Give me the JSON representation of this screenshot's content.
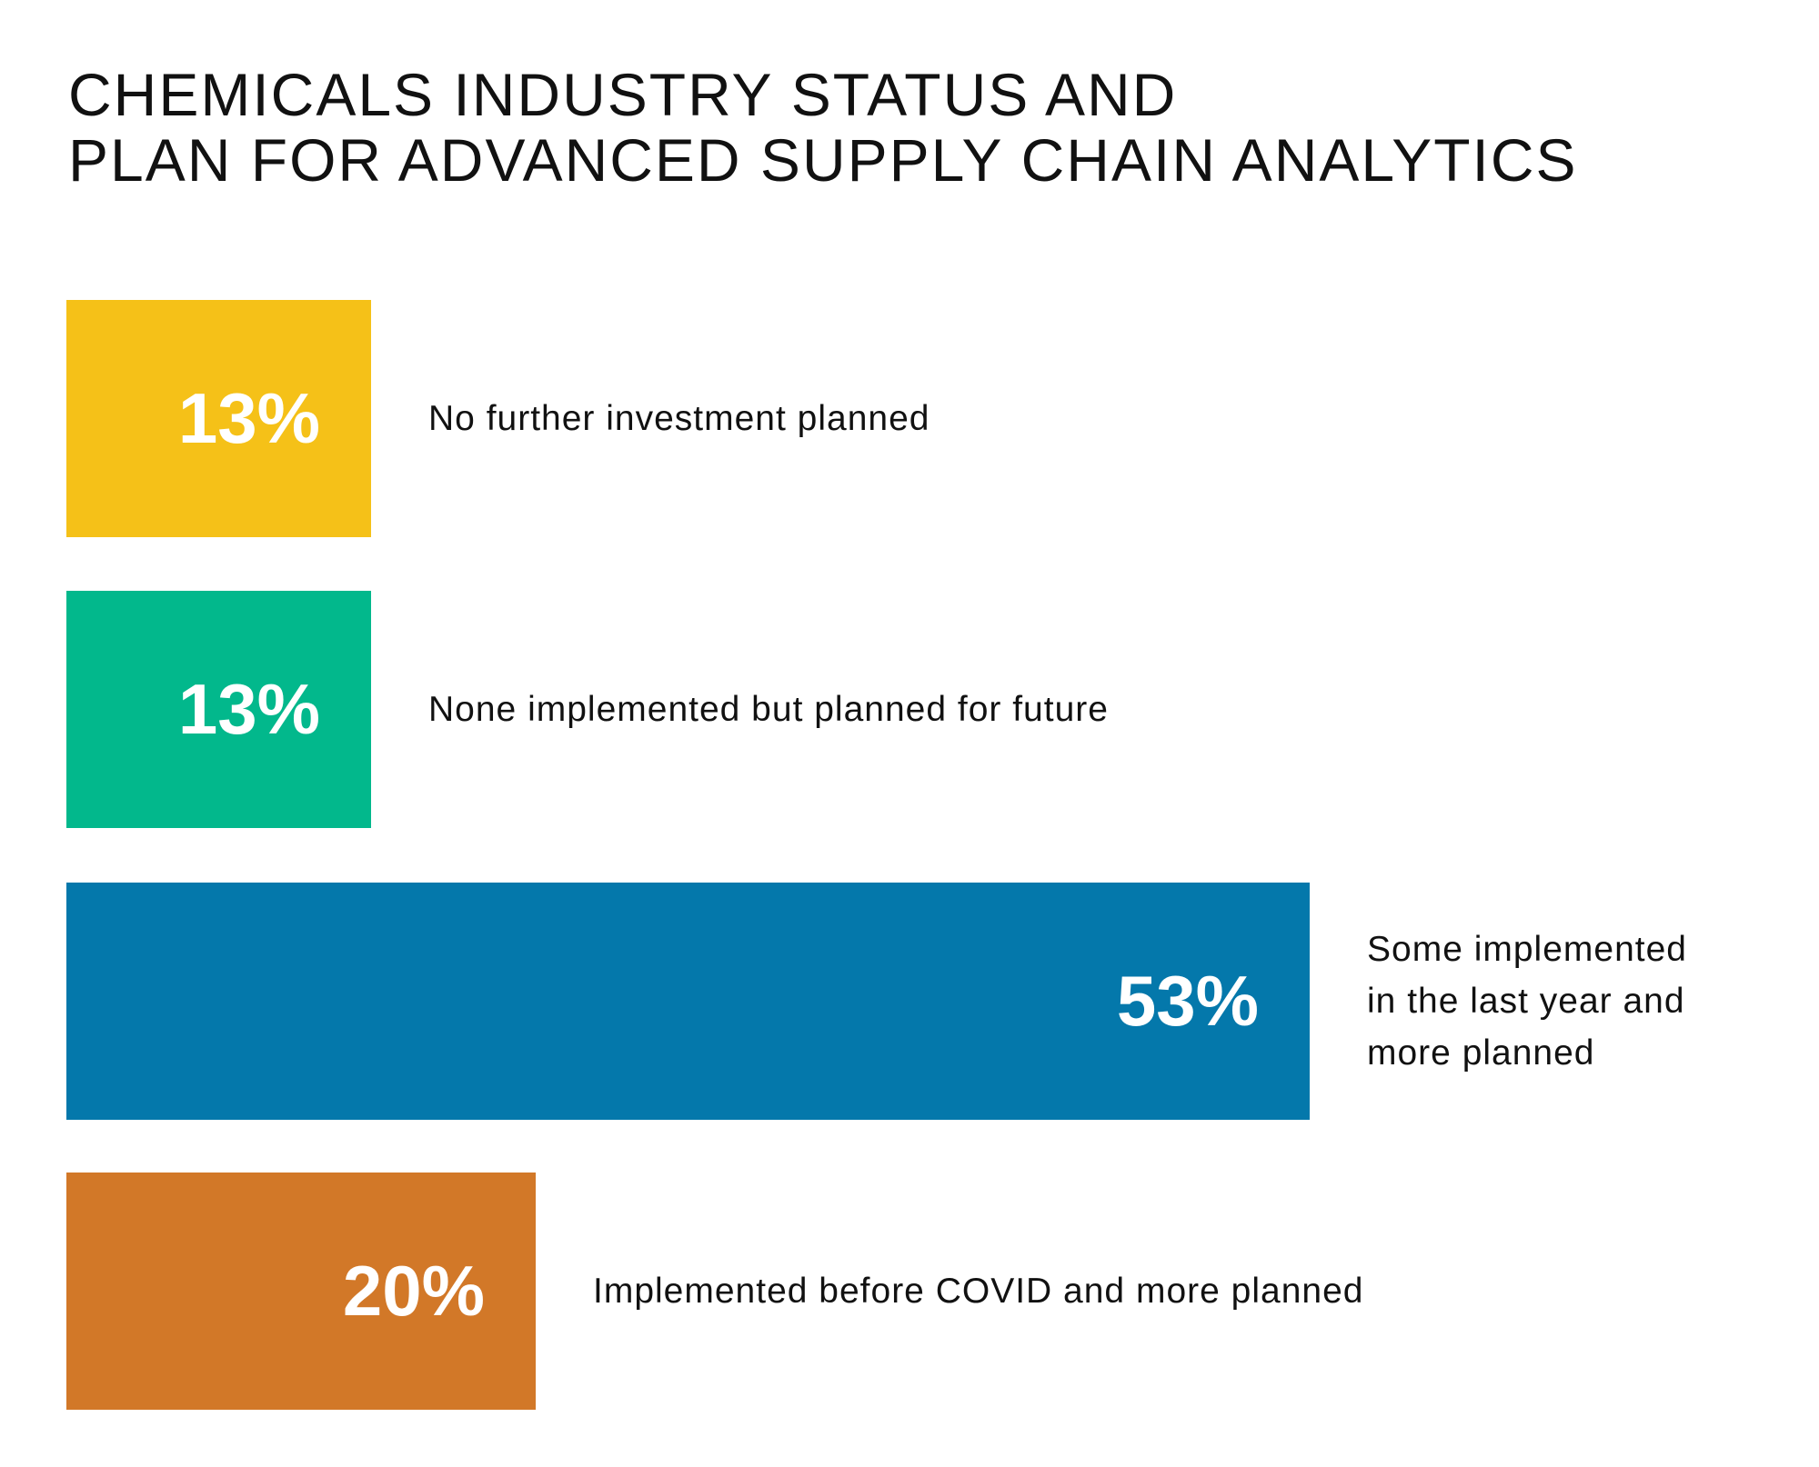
{
  "chart_data": {
    "type": "bar",
    "orientation": "horizontal",
    "title": [
      "CHEMICALS INDUSTRY STATUS AND",
      "PLAN FOR ADVANCED SUPPLY CHAIN ANALYTICS"
    ],
    "categories": [
      "No further investment planned",
      "None implemented but planned for future",
      "Some implemented in the last year and more planned",
      "Implemented before COVID and more planned"
    ],
    "category_lines": [
      [
        "No further investment planned"
      ],
      [
        "None implemented but planned for future"
      ],
      [
        "Some implemented",
        "in the last year and",
        "more planned"
      ],
      [
        "Implemented before COVID and more planned"
      ]
    ],
    "values": [
      13,
      13,
      53,
      20
    ],
    "data_labels": [
      "13%",
      "13%",
      "53%",
      "20%"
    ],
    "colors": [
      "#f5c118",
      "#02b88c",
      "#0478ab",
      "#d27828"
    ],
    "unit": "%",
    "grid": false,
    "axes_visible": false,
    "legend": "none"
  }
}
